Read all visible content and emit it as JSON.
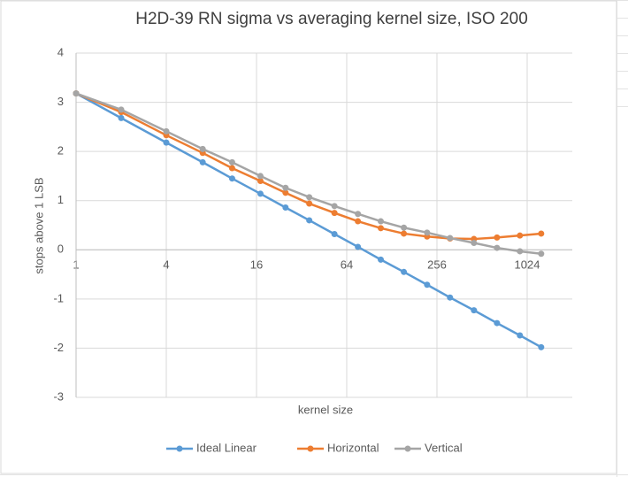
{
  "chart_data": {
    "type": "line",
    "title": "H2D-39 RN sigma vs averaging kernel size, ISO 200",
    "xlabel": "kernel size",
    "ylabel": "stops above 1 LSB",
    "x": [
      1,
      2,
      4,
      7,
      11,
      17,
      25,
      36,
      53,
      76,
      108,
      154,
      220,
      313,
      452,
      644,
      916,
      1270
    ],
    "series": [
      {
        "name": "Ideal Linear",
        "color": "#5b9bd5",
        "values": [
          3.18,
          2.68,
          2.18,
          1.78,
          1.45,
          1.14,
          0.86,
          0.6,
          0.32,
          0.06,
          -0.2,
          -0.45,
          -0.71,
          -0.97,
          -1.23,
          -1.49,
          -1.74,
          -1.98
        ]
      },
      {
        "name": "Horizontal",
        "color": "#ed7d31",
        "values": [
          3.18,
          2.8,
          2.33,
          1.97,
          1.66,
          1.4,
          1.16,
          0.94,
          0.75,
          0.58,
          0.44,
          0.33,
          0.27,
          0.23,
          0.22,
          0.25,
          0.29,
          0.33
        ]
      },
      {
        "name": "Vertical",
        "color": "#a5a5a5",
        "values": [
          3.18,
          2.85,
          2.41,
          2.05,
          1.78,
          1.5,
          1.26,
          1.07,
          0.89,
          0.73,
          0.58,
          0.45,
          0.35,
          0.24,
          0.14,
          0.04,
          -0.03,
          -0.08
        ]
      }
    ],
    "xscale": "log",
    "xlim": [
      1,
      2048
    ],
    "xticks": [
      1,
      4,
      16,
      64,
      256,
      1024
    ],
    "ylim": [
      -3,
      4
    ],
    "yticks": [
      -3,
      -2,
      -1,
      0,
      1,
      2,
      3,
      4
    ],
    "grid": true,
    "legend": "bottom"
  }
}
